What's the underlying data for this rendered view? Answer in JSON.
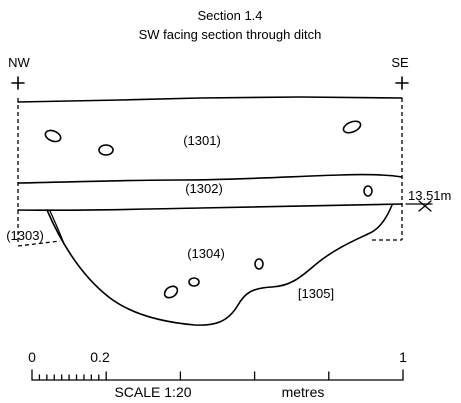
{
  "title": {
    "line1": "Section 1.4",
    "line2": "SW facing section through ditch"
  },
  "orientation": {
    "left": "NW",
    "right": "SE"
  },
  "contexts": {
    "c1301": "(1301)",
    "c1302": "(1302)",
    "c1303": "(1303)",
    "c1304": "(1304)",
    "c1305": "[1305]"
  },
  "datum": {
    "level": "13.51m"
  },
  "scale": {
    "tick_0": "0",
    "tick_02": "0.2",
    "tick_1": "1",
    "label": "SCALE 1:20",
    "unit": "metres"
  }
}
